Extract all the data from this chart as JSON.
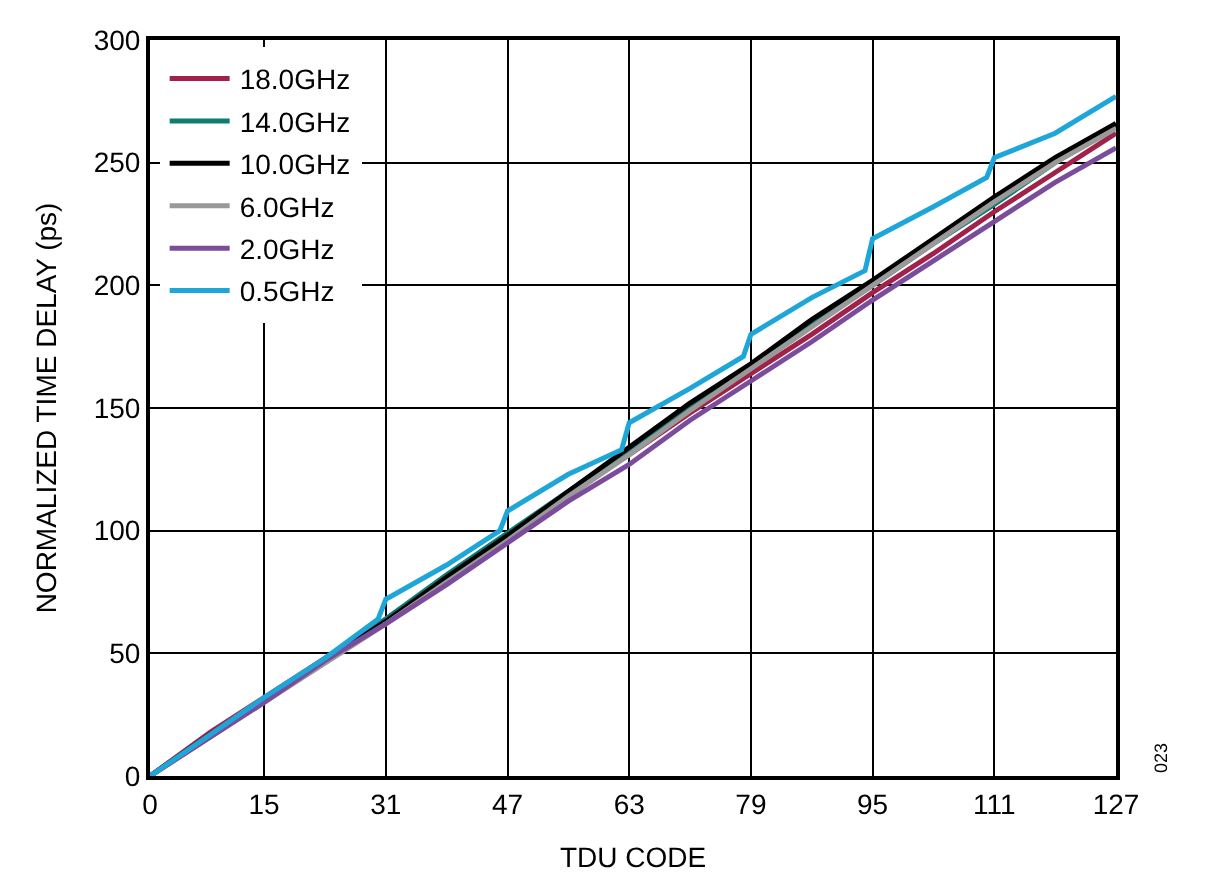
{
  "chart_data": {
    "type": "line",
    "xlabel": "TDU CODE",
    "ylabel": "NORMALIZED TIME DELAY (ps)",
    "x": [
      0,
      8,
      15,
      23,
      31,
      39,
      47,
      55,
      63,
      71,
      79,
      87,
      95,
      103,
      111,
      119,
      127
    ],
    "series": [
      {
        "name": "18.0GHz",
        "color": "#a0224a",
        "values": [
          0,
          18,
          32,
          48,
          64,
          81,
          98,
          115,
          131,
          148,
          164,
          180,
          197,
          213,
          230,
          246,
          262
        ]
      },
      {
        "name": "14.0GHz",
        "color": "#0f7c73",
        "values": [
          0,
          17,
          31,
          48,
          64,
          82,
          99,
          116,
          133,
          150,
          167,
          184,
          200,
          217,
          233,
          250,
          265
        ]
      },
      {
        "name": "10.0GHz",
        "color": "#000000",
        "values": [
          0,
          17,
          31,
          47,
          63,
          81,
          98,
          116,
          134,
          152,
          168,
          186,
          202,
          219,
          236,
          252,
          266
        ]
      },
      {
        "name": "6.0GHz",
        "color": "#999999",
        "values": [
          0,
          16,
          30,
          46,
          62,
          79,
          96,
          114,
          131,
          149,
          166,
          183,
          200,
          217,
          234,
          250,
          264
        ]
      },
      {
        "name": "2.0GHz",
        "color": "#7b4c9c",
        "values": [
          0,
          16,
          30,
          47,
          62,
          78,
          95,
          112,
          127,
          145,
          161,
          177,
          194,
          210,
          226,
          242,
          256
        ]
      },
      {
        "name": "0.5GHz",
        "color": "#1ea6d9",
        "x": [
          0,
          8,
          15,
          23,
          30,
          31,
          39,
          46,
          47,
          55,
          62,
          63,
          71,
          78,
          79,
          87,
          94,
          95,
          103,
          110,
          111,
          119,
          127
        ],
        "values": [
          0,
          17,
          32,
          48,
          64,
          72,
          86,
          100,
          108,
          123,
          133,
          144,
          158,
          171,
          180,
          195,
          206,
          219,
          232,
          244,
          252,
          262,
          277
        ]
      }
    ],
    "xlim": [
      0,
      127
    ],
    "xticks": [
      0,
      15,
      31,
      47,
      63,
      79,
      95,
      111,
      127
    ],
    "ylim": [
      0,
      300
    ],
    "yticks": [
      0,
      50,
      100,
      150,
      200,
      250,
      300
    ],
    "grid": true,
    "legend": "top left",
    "marker": "none",
    "line_style": "solid",
    "annotations": [
      "023"
    ]
  }
}
